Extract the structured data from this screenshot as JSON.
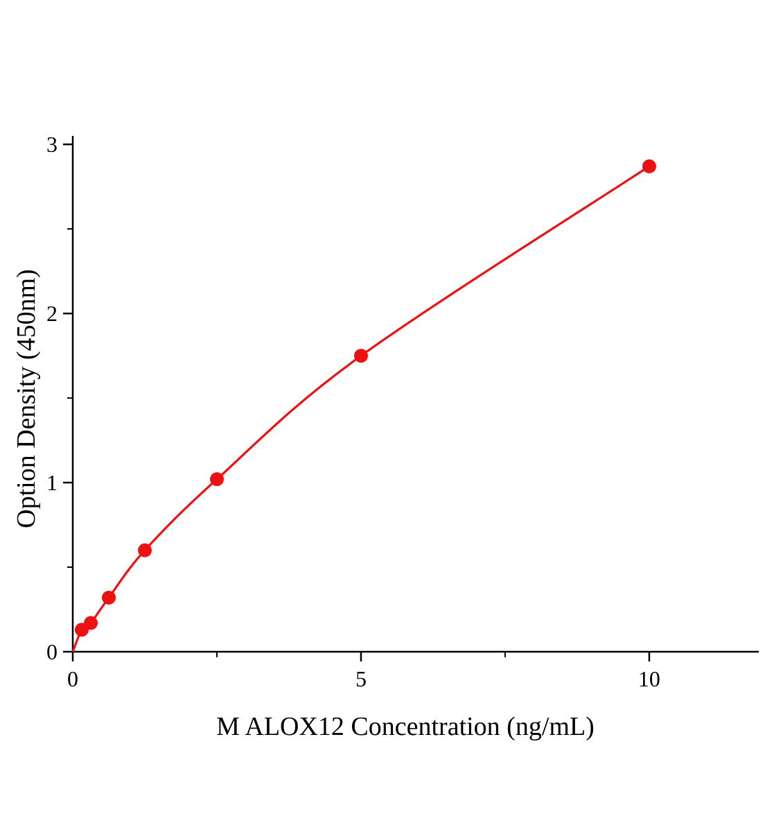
{
  "chart_data": {
    "type": "scatter",
    "title": "",
    "xlabel": "M ALOX12 Concentration (ng/mL)",
    "ylabel": "Option Density (450nm)",
    "x": [
      0.156,
      0.313,
      0.625,
      1.25,
      2.5,
      5,
      10
    ],
    "y": [
      0.13,
      0.17,
      0.32,
      0.6,
      1.02,
      1.75,
      2.87
    ],
    "curve_start": [
      0,
      0
    ],
    "xlim": [
      0,
      11.9
    ],
    "ylim": [
      0,
      3.05
    ],
    "x_major_ticks": [
      0,
      5,
      10
    ],
    "x_minor_ticks": [
      2.5,
      7.5
    ],
    "y_major_ticks": [
      0,
      1,
      2,
      3
    ],
    "y_minor_ticks": [
      0.5,
      1.5,
      2.5
    ],
    "grid": false,
    "legend": "none",
    "line_color": "#ee1111",
    "marker_color": "#ee1111",
    "axis_color": "#000000"
  }
}
